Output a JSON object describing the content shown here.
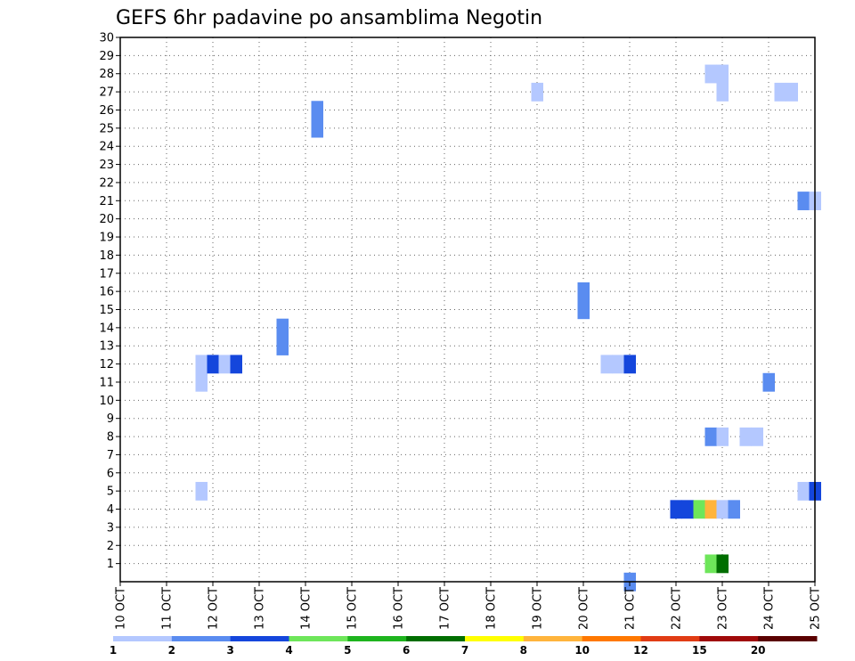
{
  "chart_data": {
    "type": "heatmap",
    "title": "GEFS 6hr padavine po ansamblima Negotin",
    "xlabel": "",
    "ylabel": "",
    "x_tick_labels": [
      "10 OCT",
      "11 OCT",
      "12 OCT",
      "13 OCT",
      "14 OCT",
      "15 OCT",
      "16 OCT",
      "17 OCT",
      "18 OCT",
      "19 OCT",
      "20 OCT",
      "21 OCT",
      "22 OCT",
      "23 OCT",
      "24 OCT",
      "25 OCT"
    ],
    "xlim": [
      0,
      15
    ],
    "y_tick_labels": [
      "1",
      "2",
      "3",
      "4",
      "5",
      "6",
      "7",
      "8",
      "9",
      "10",
      "11",
      "12",
      "13",
      "14",
      "15",
      "16",
      "17",
      "18",
      "19",
      "20",
      "21",
      "22",
      "23",
      "24",
      "25",
      "26",
      "27",
      "28",
      "29",
      "30"
    ],
    "ylim": [
      0,
      30
    ],
    "grid": true,
    "colorbar": {
      "labels": [
        "1",
        "2",
        "3",
        "4",
        "5",
        "6",
        "7",
        "8",
        "10",
        "12",
        "15",
        "20"
      ],
      "colors": [
        "#b4c8ff",
        "#5a8cf0",
        "#1446dc",
        "#6ee65a",
        "#1eb41e",
        "#006e00",
        "#ffff00",
        "#ffb43c",
        "#ff7800",
        "#e13c14",
        "#a00a0a",
        "#5a0000"
      ]
    },
    "cells": [
      {
        "day": 1.75,
        "member": 5,
        "value": 1
      },
      {
        "day": 1.75,
        "member": 11,
        "value": 1
      },
      {
        "day": 1.75,
        "member": 12,
        "value": 1
      },
      {
        "day": 2.0,
        "member": 12,
        "value": 3
      },
      {
        "day": 2.25,
        "member": 12,
        "value": 1
      },
      {
        "day": 2.5,
        "member": 12,
        "value": 3
      },
      {
        "day": 3.5,
        "member": 13,
        "value": 2
      },
      {
        "day": 3.5,
        "member": 14,
        "value": 2
      },
      {
        "day": 4.25,
        "member": 25,
        "value": 2
      },
      {
        "day": 4.25,
        "member": 26,
        "value": 2
      },
      {
        "day": 9.0,
        "member": 27,
        "value": 1
      },
      {
        "day": 10.0,
        "member": 15,
        "value": 2
      },
      {
        "day": 10.0,
        "member": 16,
        "value": 2
      },
      {
        "day": 10.5,
        "member": 12,
        "value": 1
      },
      {
        "day": 10.75,
        "member": 12,
        "value": 1
      },
      {
        "day": 11.0,
        "member": 12,
        "value": 3
      },
      {
        "day": 11.0,
        "member": 0,
        "value": 2
      },
      {
        "day": 12.0,
        "member": 4,
        "value": 3
      },
      {
        "day": 12.25,
        "member": 4,
        "value": 3
      },
      {
        "day": 12.5,
        "member": 4,
        "value": 4
      },
      {
        "day": 12.75,
        "member": 4,
        "value": 8
      },
      {
        "day": 13.0,
        "member": 4,
        "value": 1
      },
      {
        "day": 13.25,
        "member": 4,
        "value": 2
      },
      {
        "day": 12.75,
        "member": 1,
        "value": 4
      },
      {
        "day": 13.0,
        "member": 1,
        "value": 6
      },
      {
        "day": 12.75,
        "member": 8,
        "value": 2
      },
      {
        "day": 13.0,
        "member": 8,
        "value": 1
      },
      {
        "day": 13.5,
        "member": 8,
        "value": 1
      },
      {
        "day": 13.75,
        "member": 8,
        "value": 1
      },
      {
        "day": 12.75,
        "member": 28,
        "value": 1
      },
      {
        "day": 13.0,
        "member": 28,
        "value": 1
      },
      {
        "day": 13.0,
        "member": 27,
        "value": 1
      },
      {
        "day": 14.0,
        "member": 11,
        "value": 2
      },
      {
        "day": 14.25,
        "member": 27,
        "value": 1
      },
      {
        "day": 14.5,
        "member": 27,
        "value": 1
      },
      {
        "day": 14.75,
        "member": 21,
        "value": 2
      },
      {
        "day": 15.0,
        "member": 21,
        "value": 1
      },
      {
        "day": 14.75,
        "member": 5,
        "value": 1
      },
      {
        "day": 15.0,
        "member": 5,
        "value": 3
      }
    ]
  }
}
